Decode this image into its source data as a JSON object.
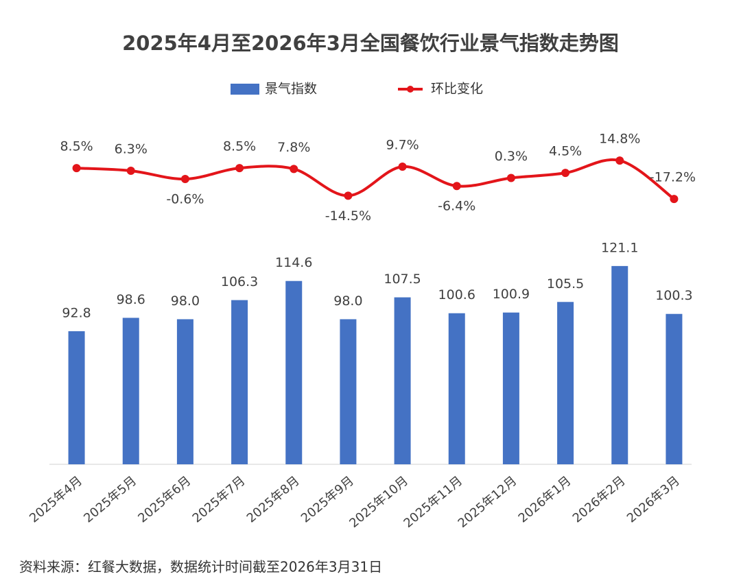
{
  "chart_data": {
    "type": "bar",
    "title": "2025年4月至2026年3月全国餐饮行业景气指数走势图",
    "categories": [
      "2025年4月",
      "2025年5月",
      "2025年6月",
      "2025年7月",
      "2025年8月",
      "2025年9月",
      "2025年10月",
      "2025年11月",
      "2025年12月",
      "2026年1月",
      "2026年2月",
      "2026年3月"
    ],
    "series": [
      {
        "name": "景气指数",
        "type": "bar",
        "color": "#4472c4",
        "values": [
          92.8,
          98.6,
          98.0,
          106.3,
          114.6,
          98.0,
          107.5,
          100.6,
          100.9,
          105.5,
          121.1,
          100.3
        ],
        "value_labels": [
          "92.8",
          "98.6",
          "98.0",
          "106.3",
          "114.6",
          "98.0",
          "107.5",
          "100.6",
          "100.9",
          "105.5",
          "121.1",
          "100.3"
        ]
      },
      {
        "name": "环比变化",
        "type": "line",
        "axis": "y2",
        "color": "#e3151a",
        "values": [
          8.5,
          6.3,
          -0.6,
          8.5,
          7.8,
          -14.5,
          9.7,
          -6.4,
          0.3,
          4.5,
          14.8,
          -17.2
        ],
        "value_labels": [
          "8.5%",
          "6.3%",
          "-0.6%",
          "8.5%",
          "7.8%",
          "-14.5%",
          "9.7%",
          "-6.4%",
          "0.3%",
          "4.5%",
          "14.8%",
          "-17.2%"
        ]
      }
    ],
    "ylim": [
      35,
      130
    ],
    "y2lim": [
      -30,
      30
    ],
    "grid": false,
    "legend": "top",
    "source": "资料来源：红餐大数据，数据统计时间截至2026年3月31日"
  }
}
